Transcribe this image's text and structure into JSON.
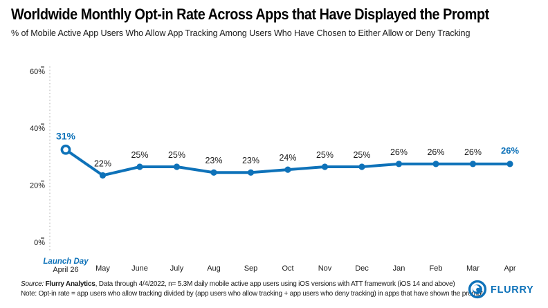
{
  "header": {
    "title": "Worldwide Monthly Opt-in Rate Across Apps that Have Displayed the Prompt",
    "subtitle": "% of Mobile Active App Users Who Allow App Tracking Among Users Who Have Chosen to Either Allow or Deny Tracking"
  },
  "chart_data": {
    "type": "line",
    "categories": [
      "April 26",
      "May",
      "June",
      "July",
      "Aug",
      "Sep",
      "Oct",
      "Nov",
      "Dec",
      "Jan",
      "Feb",
      "Mar",
      "Apr"
    ],
    "values": [
      31,
      22,
      25,
      25,
      23,
      23,
      24,
      25,
      25,
      26,
      26,
      26,
      26
    ],
    "point_labels": [
      "31%",
      "22%",
      "25%",
      "25%",
      "23%",
      "23%",
      "24%",
      "25%",
      "25%",
      "26%",
      "26%",
      "26%",
      "26%"
    ],
    "y_ticks": [
      {
        "value": 60,
        "label": "60%"
      },
      {
        "value": 40,
        "label": "40%"
      },
      {
        "value": 20,
        "label": "20%"
      },
      {
        "value": 0,
        "label": "0%"
      }
    ],
    "ylim": [
      0,
      62
    ],
    "grid": false,
    "legend": null,
    "first_point_annotation": {
      "line1": "Launch Day",
      "line2": "April 26"
    },
    "line_color": "#0e72b9",
    "label_color": "#1a1a1a",
    "axis_line_color": "#c4c4c4",
    "first_point_style": "open-circle",
    "highlighted_label_indices": [
      0,
      12
    ]
  },
  "footer": {
    "source_prefix": "Source:",
    "source_bold": " Flurry Analytics",
    "source_rest": ", Data through 4/4/2022, n= 5.3M daily mobile active app users using iOS versions with ATT framework (iOS 14 and above)",
    "note": "Note: Opt-in rate = app users who allow tracking divided by (app users who allow tracking + app users who deny tracking) in apps that have shown the prompt",
    "logo_text": "FLURRY"
  }
}
